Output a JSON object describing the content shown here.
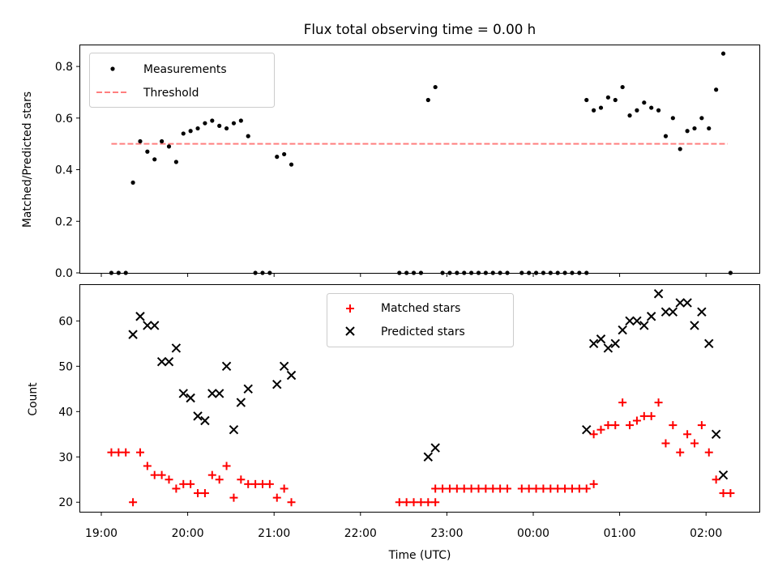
{
  "title": "Flux total observing time = 0.00 h",
  "colors": {
    "measurements": "#000000",
    "threshold": "#ff7f7f",
    "matched": "#ff0000",
    "predicted": "#000000"
  },
  "chart_data": [
    {
      "type": "scatter",
      "title": "Flux total observing time = 0.00 h",
      "ylabel": "Matched/Predicted stars",
      "xlabel": "",
      "ylim": [
        0,
        0.885
      ],
      "yticks": [
        "0.0",
        "0.2",
        "0.4",
        "0.6",
        "0.8"
      ],
      "legend": "top-left",
      "threshold": {
        "name": "Threshold",
        "value": 0.5,
        "x": [
          "19:07",
          "02:15"
        ]
      },
      "series": [
        {
          "name": "Measurements",
          "points": [
            [
              "19:07",
              0
            ],
            [
              "19:12",
              0
            ],
            [
              "19:17",
              0
            ],
            [
              "19:22",
              0.35
            ],
            [
              "19:27",
              0.51
            ],
            [
              "19:32",
              0.47
            ],
            [
              "19:37",
              0.44
            ],
            [
              "19:42",
              0.51
            ],
            [
              "19:47",
              0.49
            ],
            [
              "19:52",
              0.43
            ],
            [
              "19:57",
              0.54
            ],
            [
              "20:02",
              0.55
            ],
            [
              "20:07",
              0.56
            ],
            [
              "20:12",
              0.58
            ],
            [
              "20:17",
              0.59
            ],
            [
              "20:22",
              0.57
            ],
            [
              "20:27",
              0.56
            ],
            [
              "20:32",
              0.58
            ],
            [
              "20:37",
              0.59
            ],
            [
              "20:42",
              0.53
            ],
            [
              "20:47",
              0
            ],
            [
              "20:52",
              0
            ],
            [
              "20:57",
              0
            ],
            [
              "21:02",
              0.45
            ],
            [
              "21:07",
              0.46
            ],
            [
              "21:12",
              0.42
            ],
            [
              "22:27",
              0
            ],
            [
              "22:32",
              0
            ],
            [
              "22:37",
              0
            ],
            [
              "22:42",
              0
            ],
            [
              "22:47",
              0.67
            ],
            [
              "22:52",
              0.72
            ],
            [
              "22:57",
              0
            ],
            [
              "23:02",
              0
            ],
            [
              "23:07",
              0
            ],
            [
              "23:12",
              0
            ],
            [
              "23:17",
              0
            ],
            [
              "23:22",
              0
            ],
            [
              "23:27",
              0
            ],
            [
              "23:32",
              0
            ],
            [
              "23:37",
              0
            ],
            [
              "23:42",
              0
            ],
            [
              "23:52",
              0
            ],
            [
              "23:57",
              0
            ],
            [
              "00:02",
              0
            ],
            [
              "00:07",
              0
            ],
            [
              "00:12",
              0
            ],
            [
              "00:17",
              0
            ],
            [
              "00:22",
              0
            ],
            [
              "00:27",
              0
            ],
            [
              "00:32",
              0
            ],
            [
              "00:37",
              0
            ],
            [
              "00:37",
              0.67
            ],
            [
              "00:42",
              0.63
            ],
            [
              "00:47",
              0.64
            ],
            [
              "00:52",
              0.68
            ],
            [
              "00:57",
              0.67
            ],
            [
              "01:02",
              0.72
            ],
            [
              "01:07",
              0.61
            ],
            [
              "01:12",
              0.63
            ],
            [
              "01:17",
              0.66
            ],
            [
              "01:22",
              0.64
            ],
            [
              "01:27",
              0.63
            ],
            [
              "01:32",
              0.53
            ],
            [
              "01:37",
              0.6
            ],
            [
              "01:42",
              0.48
            ],
            [
              "01:47",
              0.55
            ],
            [
              "01:52",
              0.56
            ],
            [
              "01:57",
              0.6
            ],
            [
              "02:02",
              0.56
            ],
            [
              "02:07",
              0.71
            ],
            [
              "02:12",
              0.85
            ],
            [
              "02:17",
              0
            ]
          ]
        }
      ]
    },
    {
      "type": "scatter",
      "title": "",
      "xlabel": "Time (UTC)",
      "ylabel": "Count",
      "ylim": [
        17.9,
        68.1
      ],
      "yticks": [
        "20",
        "30",
        "40",
        "50",
        "60"
      ],
      "xticks": [
        "19:00",
        "20:00",
        "21:00",
        "22:00",
        "23:00",
        "00:00",
        "01:00",
        "02:00"
      ],
      "legend": "top-center",
      "series": [
        {
          "name": "Matched stars",
          "marker": "plus",
          "points": [
            [
              "19:07",
              31
            ],
            [
              "19:12",
              31
            ],
            [
              "19:17",
              31
            ],
            [
              "19:22",
              20
            ],
            [
              "19:27",
              31
            ],
            [
              "19:32",
              28
            ],
            [
              "19:37",
              26
            ],
            [
              "19:42",
              26
            ],
            [
              "19:47",
              25
            ],
            [
              "19:52",
              23
            ],
            [
              "19:57",
              24
            ],
            [
              "20:02",
              24
            ],
            [
              "20:07",
              22
            ],
            [
              "20:12",
              22
            ],
            [
              "20:17",
              26
            ],
            [
              "20:22",
              25
            ],
            [
              "20:27",
              28
            ],
            [
              "20:32",
              21
            ],
            [
              "20:37",
              25
            ],
            [
              "20:42",
              24
            ],
            [
              "20:47",
              24
            ],
            [
              "20:52",
              24
            ],
            [
              "20:57",
              24
            ],
            [
              "21:02",
              21
            ],
            [
              "21:07",
              23
            ],
            [
              "21:12",
              20
            ],
            [
              "22:27",
              20
            ],
            [
              "22:32",
              20
            ],
            [
              "22:37",
              20
            ],
            [
              "22:42",
              20
            ],
            [
              "22:47",
              20
            ],
            [
              "22:52",
              20
            ],
            [
              "22:52",
              23
            ],
            [
              "22:57",
              23
            ],
            [
              "23:02",
              23
            ],
            [
              "23:07",
              23
            ],
            [
              "23:12",
              23
            ],
            [
              "23:17",
              23
            ],
            [
              "23:22",
              23
            ],
            [
              "23:27",
              23
            ],
            [
              "23:32",
              23
            ],
            [
              "23:37",
              23
            ],
            [
              "23:42",
              23
            ],
            [
              "23:52",
              23
            ],
            [
              "23:57",
              23
            ],
            [
              "00:02",
              23
            ],
            [
              "00:07",
              23
            ],
            [
              "00:12",
              23
            ],
            [
              "00:17",
              23
            ],
            [
              "00:22",
              23
            ],
            [
              "00:27",
              23
            ],
            [
              "00:32",
              23
            ],
            [
              "00:37",
              23
            ],
            [
              "00:42",
              24
            ],
            [
              "00:42",
              35
            ],
            [
              "00:47",
              36
            ],
            [
              "00:52",
              37
            ],
            [
              "00:57",
              37
            ],
            [
              "01:02",
              42
            ],
            [
              "01:07",
              37
            ],
            [
              "01:12",
              38
            ],
            [
              "01:17",
              39
            ],
            [
              "01:22",
              39
            ],
            [
              "01:27",
              42
            ],
            [
              "01:32",
              33
            ],
            [
              "01:37",
              37
            ],
            [
              "01:42",
              31
            ],
            [
              "01:47",
              35
            ],
            [
              "01:52",
              33
            ],
            [
              "01:57",
              37
            ],
            [
              "02:02",
              31
            ],
            [
              "02:07",
              25
            ],
            [
              "02:12",
              22
            ],
            [
              "02:17",
              22
            ]
          ]
        },
        {
          "name": "Predicted stars",
          "marker": "x",
          "points": [
            [
              "19:22",
              57
            ],
            [
              "19:27",
              61
            ],
            [
              "19:32",
              59
            ],
            [
              "19:37",
              59
            ],
            [
              "19:42",
              51
            ],
            [
              "19:47",
              51
            ],
            [
              "19:52",
              54
            ],
            [
              "19:57",
              44
            ],
            [
              "20:02",
              43
            ],
            [
              "20:07",
              39
            ],
            [
              "20:12",
              38
            ],
            [
              "20:17",
              44
            ],
            [
              "20:22",
              44
            ],
            [
              "20:27",
              50
            ],
            [
              "20:32",
              36
            ],
            [
              "20:37",
              42
            ],
            [
              "20:42",
              45
            ],
            [
              "21:02",
              46
            ],
            [
              "21:07",
              50
            ],
            [
              "21:12",
              48
            ],
            [
              "22:47",
              30
            ],
            [
              "22:52",
              32
            ],
            [
              "00:37",
              36
            ],
            [
              "00:42",
              55
            ],
            [
              "00:47",
              56
            ],
            [
              "00:52",
              54
            ],
            [
              "00:57",
              55
            ],
            [
              "01:02",
              58
            ],
            [
              "01:07",
              60
            ],
            [
              "01:12",
              60
            ],
            [
              "01:17",
              59
            ],
            [
              "01:22",
              61
            ],
            [
              "01:27",
              66
            ],
            [
              "01:32",
              62
            ],
            [
              "01:37",
              62
            ],
            [
              "01:42",
              64
            ],
            [
              "01:47",
              64
            ],
            [
              "01:52",
              59
            ],
            [
              "01:57",
              62
            ],
            [
              "02:02",
              55
            ],
            [
              "02:07",
              35
            ],
            [
              "02:12",
              26
            ]
          ]
        }
      ]
    }
  ]
}
